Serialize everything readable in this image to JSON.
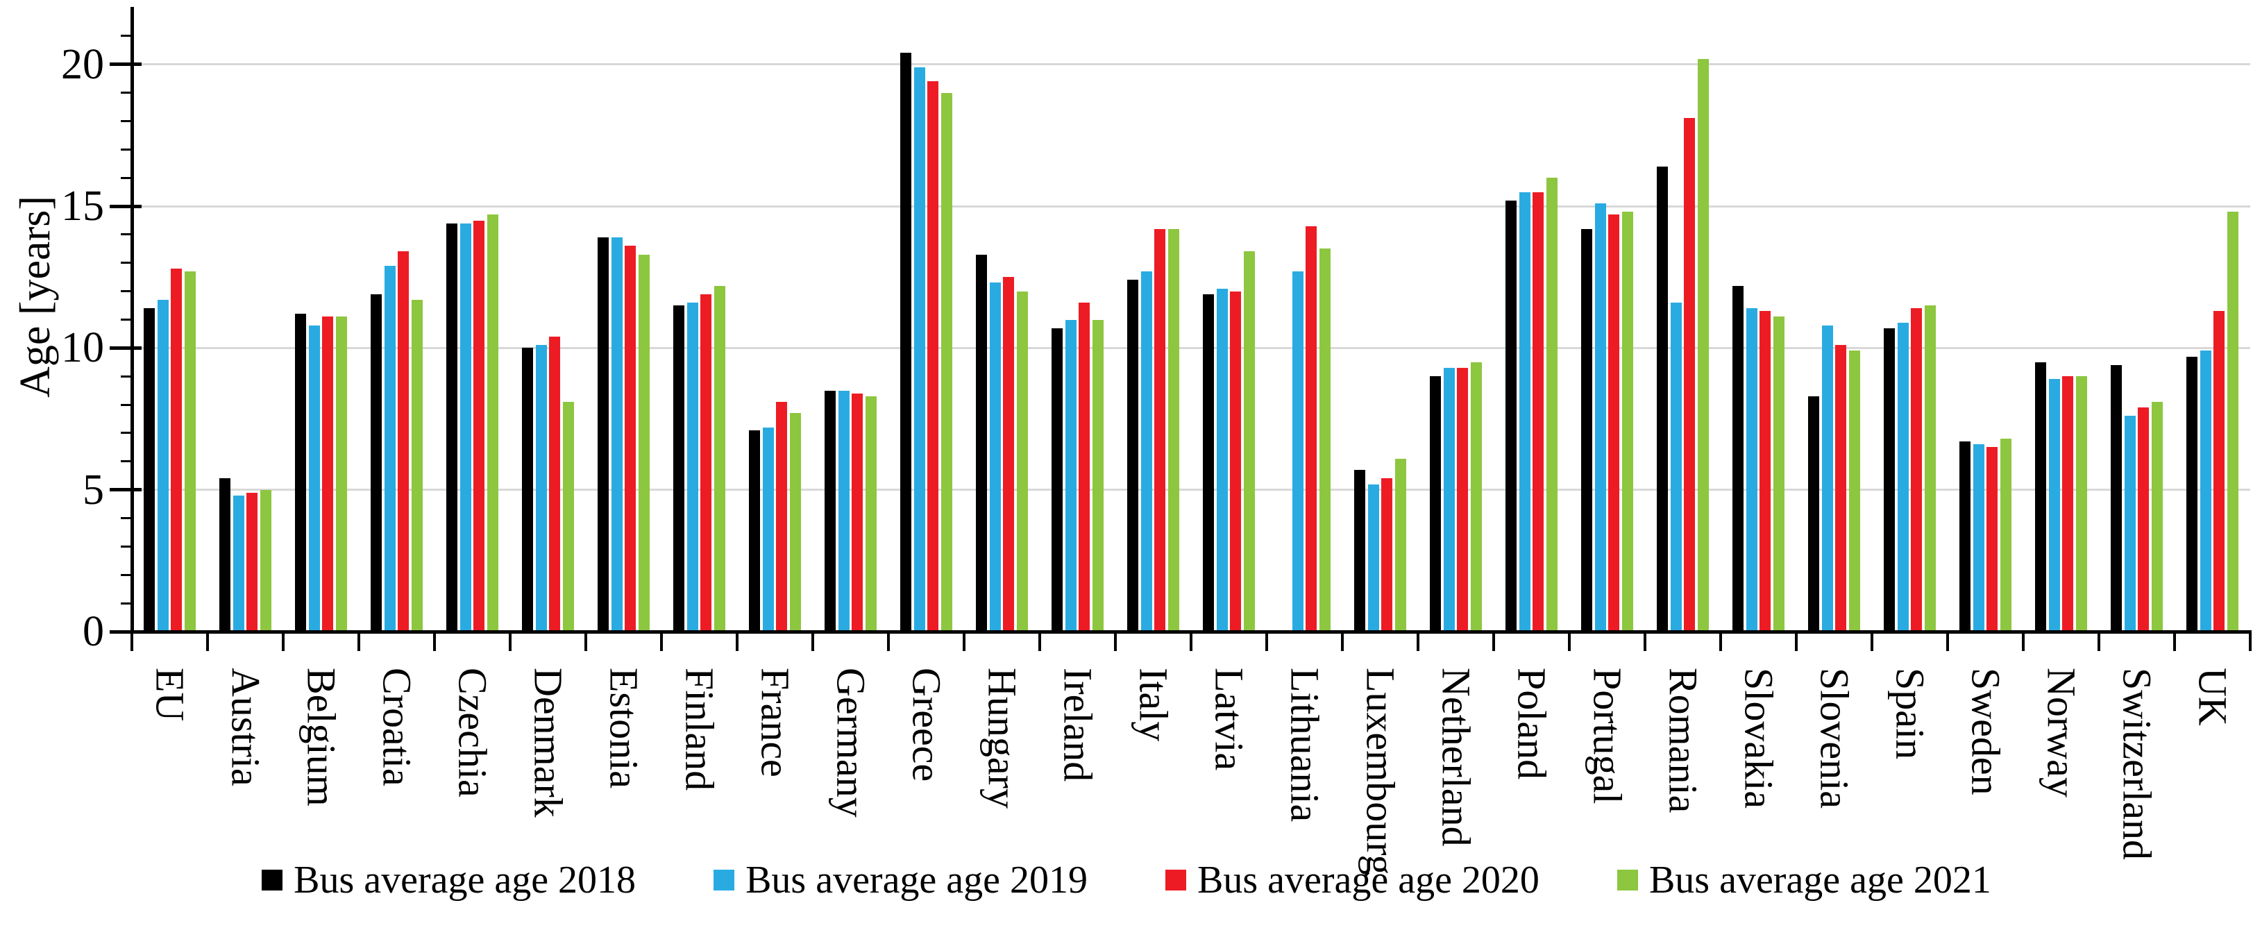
{
  "chart_data": {
    "type": "bar",
    "title": "",
    "ylabel": "Age [years]",
    "xlabel": "",
    "ylim": [
      0,
      22
    ],
    "yticks": [
      0,
      5,
      10,
      15,
      20
    ],
    "grid": "horizontal gridlines at y-ticks",
    "legend_position": "bottom",
    "grid_color": "#D8D8D8",
    "axis_color": "#000000",
    "categories": [
      "EU",
      "Austria",
      "Belgium",
      "Croatia",
      "Czechia",
      "Denmark",
      "Estonia",
      "Finland",
      "France",
      "Germany",
      "Greece",
      "Hungary",
      "Ireland",
      "Italy",
      "Latvia",
      "Lithuania",
      "Luxembourg",
      "Netherland",
      "Poland",
      "Portugal",
      "Romania",
      "Slovakia",
      "Slovenia",
      "Spain",
      "Sweden",
      "Norway",
      "Switzerland",
      "UK"
    ],
    "series": [
      {
        "name": "Bus average age 2018",
        "color": "#000000",
        "values": [
          11.4,
          5.4,
          11.2,
          11.9,
          14.4,
          10.0,
          13.9,
          11.5,
          7.1,
          8.5,
          20.4,
          13.3,
          10.7,
          12.4,
          11.9,
          null,
          5.7,
          9.0,
          15.2,
          14.2,
          16.4,
          12.2,
          8.3,
          10.7,
          6.7,
          9.5,
          9.4,
          9.7
        ]
      },
      {
        "name": "Bus average age 2019",
        "color": "#29ABE2",
        "values": [
          11.7,
          4.8,
          10.8,
          12.9,
          14.4,
          10.1,
          13.9,
          11.6,
          7.2,
          8.5,
          19.9,
          12.3,
          11.0,
          12.7,
          12.1,
          12.7,
          5.2,
          9.3,
          15.5,
          15.1,
          11.6,
          11.4,
          10.8,
          10.9,
          6.6,
          8.9,
          7.6,
          9.9
        ]
      },
      {
        "name": "Bus average age 2020",
        "color": "#ED1C24",
        "values": [
          12.8,
          4.9,
          11.1,
          13.4,
          14.5,
          10.4,
          13.6,
          11.9,
          8.1,
          8.4,
          19.4,
          12.5,
          11.6,
          14.2,
          12.0,
          14.3,
          5.4,
          9.3,
          15.5,
          14.7,
          18.1,
          11.3,
          10.1,
          11.4,
          6.5,
          9.0,
          7.9,
          11.3
        ]
      },
      {
        "name": "Bus average age 2021",
        "color": "#8DC63F",
        "values": [
          12.7,
          5.0,
          11.1,
          11.7,
          14.7,
          8.1,
          13.3,
          12.2,
          7.7,
          8.3,
          19.0,
          12.0,
          11.0,
          14.2,
          13.4,
          13.5,
          6.1,
          9.5,
          16.0,
          14.8,
          20.2,
          11.1,
          9.9,
          11.5,
          6.8,
          9.0,
          8.1,
          14.8
        ]
      }
    ]
  }
}
